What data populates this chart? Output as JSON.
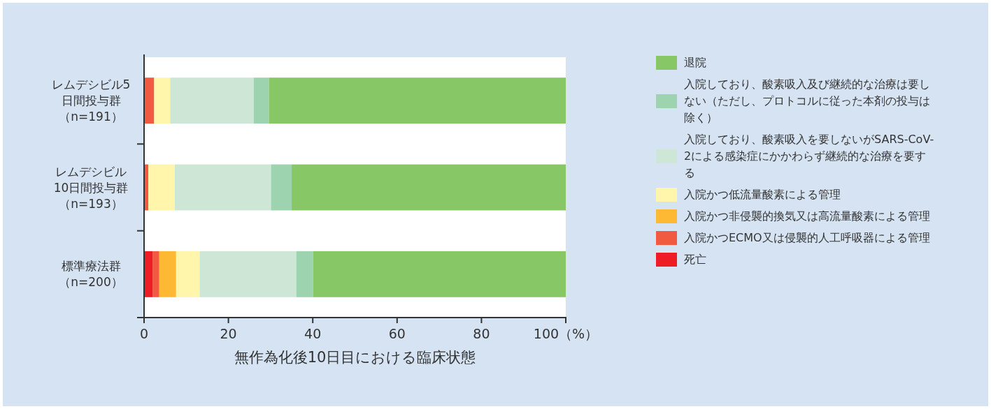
{
  "chart_data": {
    "type": "bar",
    "orientation": "horizontal",
    "stacked": true,
    "xlabel": "無作為化後10日目における臨床状態",
    "categories": [
      "レムデシビル5日間投与群（n=191）",
      "レムデシビル10日間投与群（n=193）",
      "標準療法群（n=200）"
    ],
    "series": [
      {
        "name": "死亡",
        "color": "#ee1c25",
        "values": [
          0,
          0,
          2.0
        ]
      },
      {
        "name": "入院かつECMO又は侵襲的人工呼吸器による管理",
        "color": "#f15a40",
        "values": [
          2.4,
          1.0,
          1.6
        ]
      },
      {
        "name": "入院かつ非侵襲的換気又は高流量酸素による管理",
        "color": "#fdb933",
        "values": [
          0,
          0,
          4.0
        ]
      },
      {
        "name": "入院かつ低流量酸素による管理",
        "color": "#fff5ab",
        "values": [
          3.8,
          6.3,
          5.6
        ]
      },
      {
        "name": "入院しており、酸素吸入を要しないがSARS-CoV-2による感染症にかかわらず継続的な治療を要する",
        "color": "#cde6d6",
        "values": [
          19.8,
          22.8,
          22.9
        ]
      },
      {
        "name": "入院しており、酸素吸入及び継続的な治療は要しない（ただし、プロトコルに従った本剤の投与は除く）",
        "color": "#9dd3ae",
        "values": [
          3.6,
          4.9,
          4.0
        ]
      },
      {
        "name": "退院",
        "color": "#88c765",
        "values": [
          70.4,
          65.0,
          59.9
        ]
      }
    ],
    "xlim": [
      0,
      100
    ],
    "xticks": [
      0,
      20,
      40,
      60,
      80,
      {
        "value": 100,
        "label": "100（%）"
      }
    ],
    "grid": false,
    "legend": "right"
  }
}
